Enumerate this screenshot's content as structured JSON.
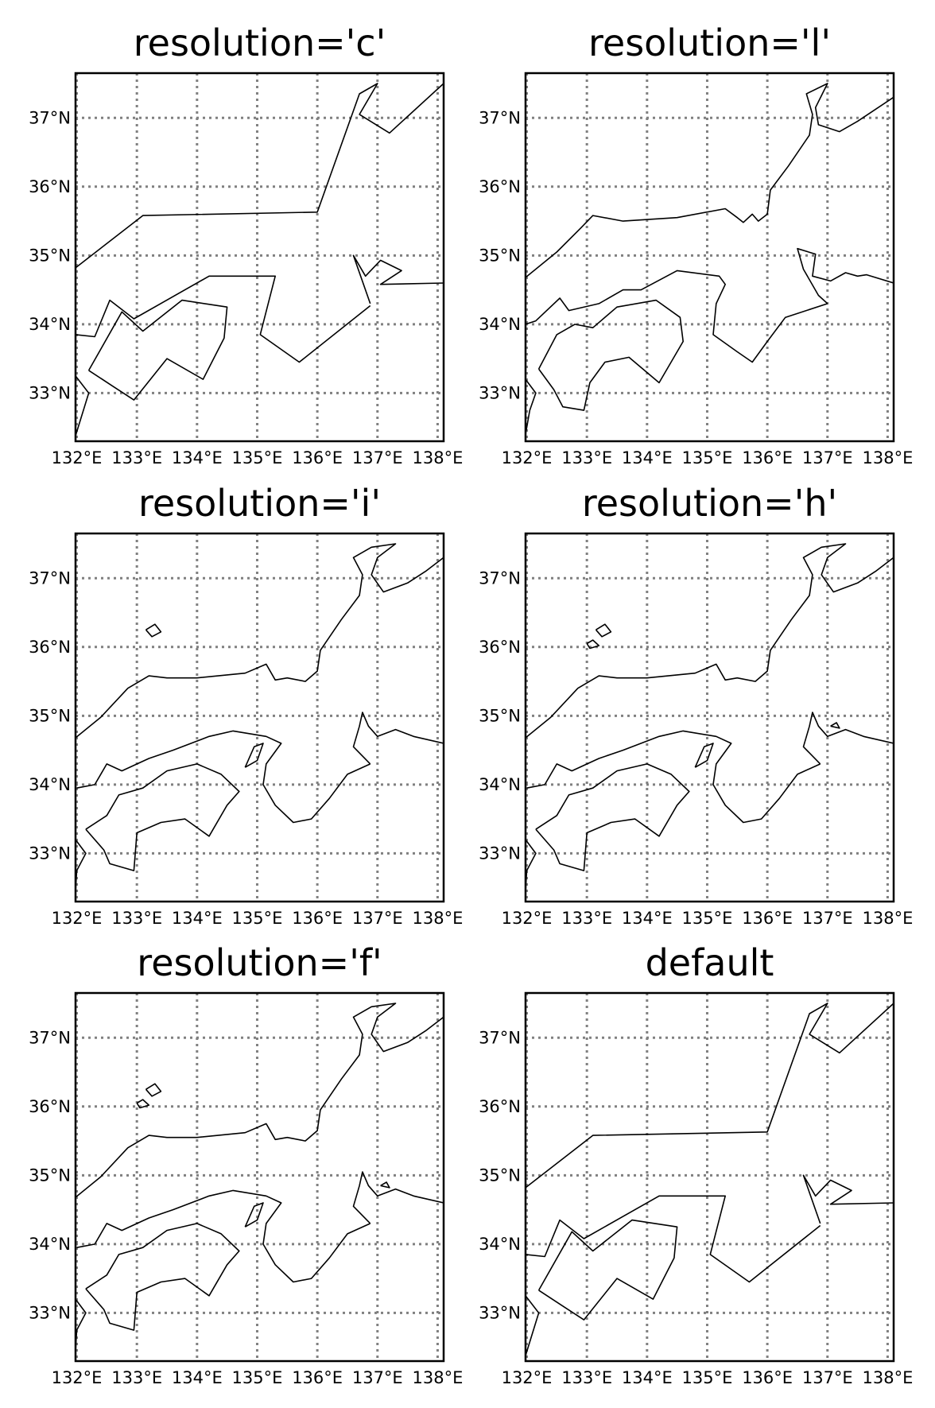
{
  "figure": {
    "lon_range": [
      131.98,
      138.1
    ],
    "lat_range": [
      32.3,
      37.65
    ],
    "grid_lons": [
      132,
      133,
      134,
      135,
      136,
      137,
      138
    ],
    "grid_lats": [
      33,
      34,
      35,
      36,
      37
    ],
    "lon_tick_labels": [
      "132°E",
      "133°E",
      "134°E",
      "135°E",
      "136°E",
      "137°E",
      "138°E"
    ],
    "lat_tick_labels": [
      "33°N",
      "34°N",
      "35°N",
      "36°N",
      "37°N"
    ],
    "grid_color": "#808080",
    "grid_style": "dotted"
  },
  "panels": [
    {
      "title": "resolution='c'",
      "detail": "crude"
    },
    {
      "title": "resolution='l'",
      "detail": "low"
    },
    {
      "title": "resolution='i'",
      "detail": "intermediate"
    },
    {
      "title": "resolution='h'",
      "detail": "high"
    },
    {
      "title": "resolution='f'",
      "detail": "full"
    },
    {
      "title": "default",
      "detail": "crude"
    }
  ]
}
